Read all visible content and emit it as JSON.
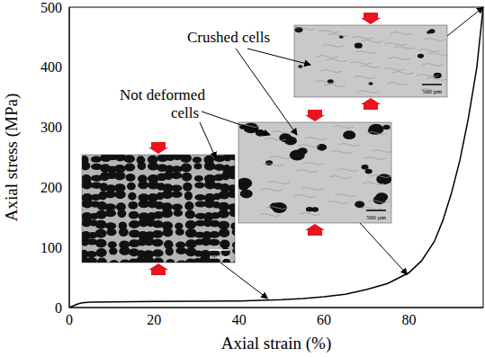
{
  "chart_data": {
    "type": "line",
    "x_label": "Axial strain (%)",
    "y_label": "Axial stress (MPa)",
    "color": "#000000",
    "x": [
      0,
      1,
      2,
      3,
      5,
      10,
      20,
      30,
      40,
      45,
      50,
      55,
      60,
      65,
      70,
      75,
      80,
      83,
      86,
      88,
      90,
      92,
      94,
      96,
      97.5
    ],
    "values": [
      0,
      3,
      6,
      8,
      9,
      9.5,
      10,
      10.5,
      11,
      12,
      13,
      15,
      18,
      22,
      30,
      40,
      58,
      78,
      110,
      145,
      190,
      245,
      315,
      400,
      500
    ],
    "xlim": [
      0,
      97.5
    ],
    "xticks": [
      0,
      20,
      40,
      60,
      80
    ],
    "ylim": [
      0,
      500
    ],
    "yticks": [
      0,
      100,
      200,
      300,
      400,
      500
    ],
    "grid": false,
    "annotations": [
      {
        "text": "Crushed cells"
      },
      {
        "text": "Not deformed cells"
      }
    ],
    "insets": [
      {
        "scale_label": "500 µm",
        "xy": [
          46.7,
          15
        ]
      },
      {
        "scale_label": "500 µm",
        "xy": [
          79.6,
          55
        ]
      },
      {
        "scale_label": "500 µm",
        "xy": [
          97.5,
          500
        ]
      }
    ]
  }
}
